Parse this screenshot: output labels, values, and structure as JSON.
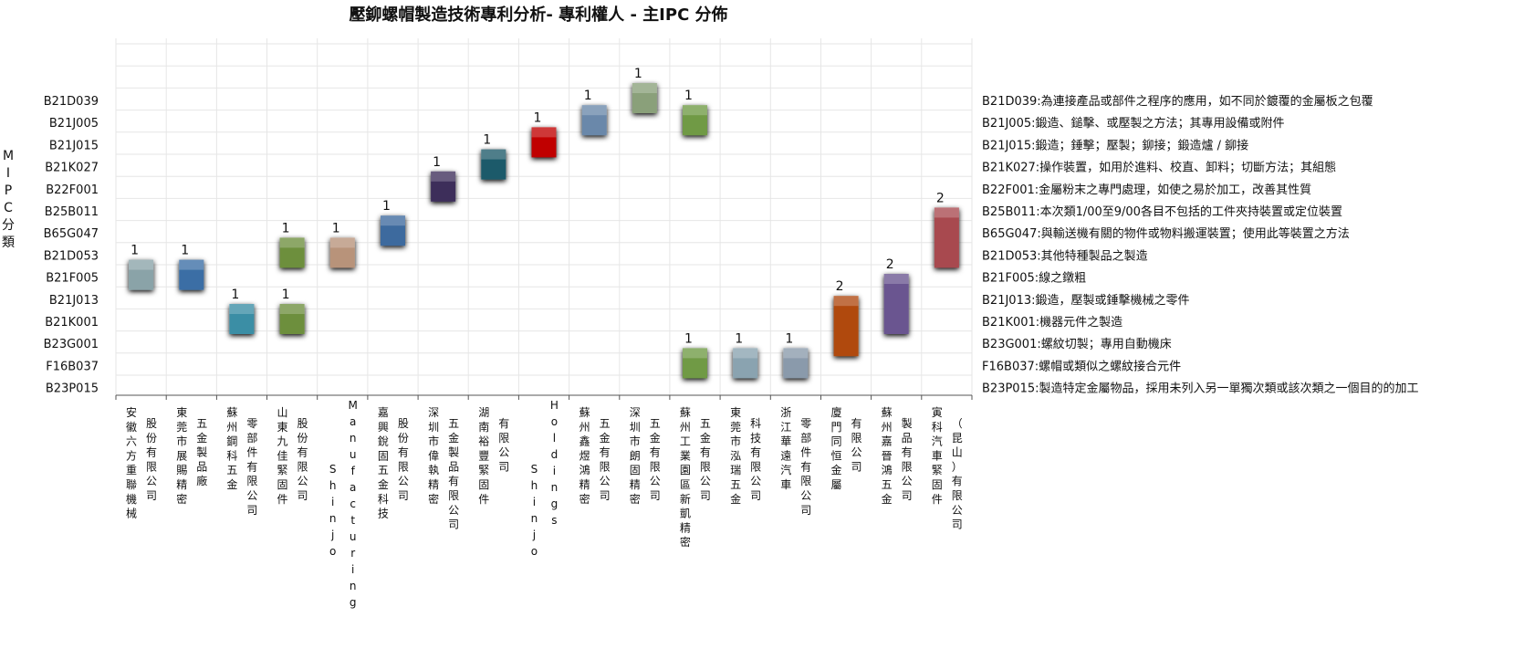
{
  "title": "壓鉚螺帽製造技術專利分析- 專利權人 - 主IPC 分佈",
  "chart_data": {
    "type": "bar",
    "title": "壓鉚螺帽製造技術專利分析- 專利權人 - 主IPC 分佈",
    "ylabel": "IPC分類",
    "y_axis_chars": [
      "M",
      "I",
      "P",
      "C",
      "分",
      "類"
    ],
    "y_categories": [
      "B21D039",
      "B21J005",
      "B21J015",
      "B21K027",
      "B22F001",
      "B25B011",
      "B65G047",
      "B21D053",
      "B21F005",
      "B21J013",
      "B21K001",
      "B23G001",
      "F16B037",
      "B23P015"
    ],
    "descriptions": [
      "B21D039:為連接產品或部件之程序的應用，如不同於鍍覆的金屬板之包覆",
      "B21J005:鍛造、鎚擊、或壓製之方法；其專用設備或附件",
      "B21J015:鍛造；錘擊；壓製；鉚接；鍛造爐 / 鉚接",
      "B21K027:操作裝置，如用於進料、校直、卸料；切斷方法；其組態",
      "B22F001:金屬粉末之專門處理，如使之易於加工，改善其性質",
      "B25B011:本次類1/00至9/00各目不包括的工件夾持裝置或定位裝置",
      "B65G047:與輸送機有關的物件或物料搬運裝置；使用此等裝置之方法",
      "B21D053:其他特種製品之製造",
      "B21F005:線之鐓粗",
      "B21J013:鍛造，壓製或錘擊機械之零件",
      "B21K001:機器元件之製造",
      "B23G001:螺紋切製；專用自動機床",
      "F16B037:螺帽或類似之螺紋接合元件",
      "B23P015:製造特定金屬物品，採用未列入另一單獨次類或該次類之一個目的的加工"
    ],
    "x_categories": [
      [
        "安徽六方重聯機械",
        "股份有限公司"
      ],
      [
        "東莞市展賜精密",
        "五金製品廠"
      ],
      [
        "蘇州鋼科五金",
        "零部件有限公司"
      ],
      [
        "山東九佳緊固件",
        "股份有限公司"
      ],
      [
        "Shinjo",
        "Manufacturing"
      ],
      [
        "嘉興銳固五金科技",
        "股份有限公司"
      ],
      [
        "深圳市偉執精密",
        "五金製品有限公司"
      ],
      [
        "湖南裕豐緊固件",
        "有限公司"
      ],
      [
        "Shinjo",
        "Holdings"
      ],
      [
        "蘇州鑫煜鴻精密",
        "五金有限公司"
      ],
      [
        "深圳市朗固精密",
        "五金有限公司"
      ],
      [
        "蘇州工業園區新凱精密",
        "五金有限公司"
      ],
      [
        "東莞市泓瑞五金",
        "科技有限公司"
      ],
      [
        "浙江華遠汽車",
        "零部件有限公司"
      ],
      [
        "廈門同恒金屬",
        "有限公司"
      ],
      [
        "蘇州嘉晉鴻五金",
        "製品有限公司"
      ],
      [
        "寅科汽車緊固件",
        "（昆山）有限公司"
      ]
    ],
    "points": [
      {
        "x": 0,
        "y": "B21F005",
        "value": 1,
        "color": "#8aa3a8"
      },
      {
        "x": 1,
        "y": "B21F005",
        "value": 1,
        "color": "#3a6ea5"
      },
      {
        "x": 2,
        "y": "B21K001",
        "value": 1,
        "color": "#3a8ea5"
      },
      {
        "x": 3,
        "y": "B21D053",
        "value": 1,
        "color": "#6d8f3e"
      },
      {
        "x": 3,
        "y": "B21K001",
        "value": 1,
        "color": "#6d8f3e"
      },
      {
        "x": 4,
        "y": "B21D053",
        "value": 1,
        "color": "#b8937a"
      },
      {
        "x": 5,
        "y": "B65G047",
        "value": 1,
        "color": "#3d6a9e"
      },
      {
        "x": 6,
        "y": "B22F001",
        "value": 1,
        "color": "#3d2e5a"
      },
      {
        "x": 7,
        "y": "B21K027",
        "value": 1,
        "color": "#1f5a6a"
      },
      {
        "x": 8,
        "y": "B21J015",
        "value": 1,
        "color": "#c00000"
      },
      {
        "x": 9,
        "y": "B21J005",
        "value": 1,
        "color": "#6a88aa"
      },
      {
        "x": 10,
        "y": "B21D039",
        "value": 1,
        "color": "#8aa07a"
      },
      {
        "x": 11,
        "y": "B21J005",
        "value": 1,
        "color": "#6f9a45"
      },
      {
        "x": 11,
        "y": "F16B037",
        "value": 1,
        "color": "#6f9a45"
      },
      {
        "x": 12,
        "y": "F16B037",
        "value": 1,
        "color": "#8aa3b0"
      },
      {
        "x": 13,
        "y": "F16B037",
        "value": 1,
        "color": "#8a9aab"
      },
      {
        "x": 14,
        "y": "B23G001",
        "value": 2,
        "color": "#b04a10"
      },
      {
        "x": 15,
        "y": "B21K001",
        "value": 2,
        "color": "#6a5590"
      },
      {
        "x": 16,
        "y": "B21D053",
        "value": 2,
        "color": "#a84a50"
      }
    ],
    "grid": true
  }
}
